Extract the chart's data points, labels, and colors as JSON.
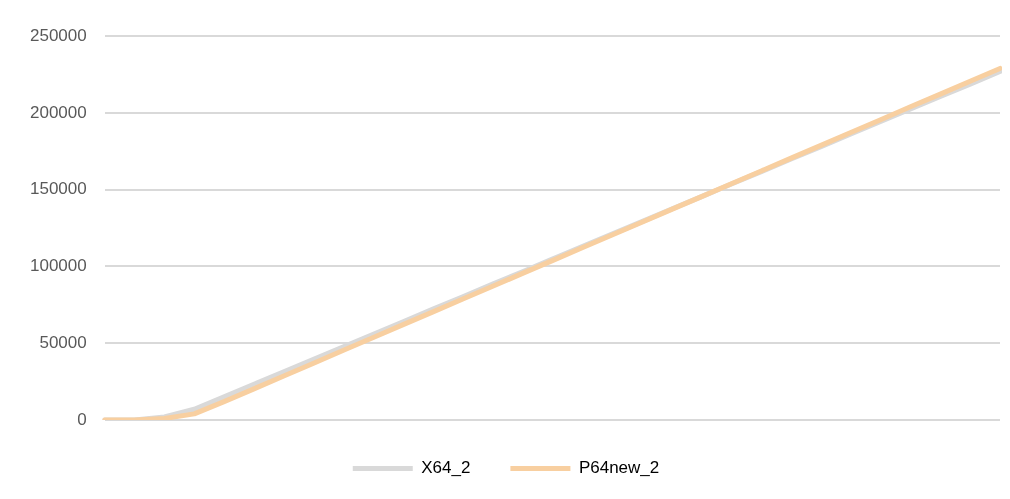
{
  "chart_data": {
    "type": "line",
    "categories": [
      null,
      null,
      null,
      null,
      null,
      null,
      null,
      null,
      null,
      null,
      null,
      null,
      null,
      null,
      null,
      null,
      null,
      null,
      null,
      null,
      null,
      null,
      null,
      null,
      null,
      null,
      null,
      null,
      null,
      null,
      null
    ],
    "series": [
      {
        "name": "X64_2",
        "color": "#d9d9d9",
        "values": [
          0,
          0,
          2000,
          7000,
          15100,
          23300,
          31400,
          39600,
          47700,
          55900,
          64000,
          72200,
          80300,
          88500,
          96600,
          104800,
          112900,
          121100,
          129200,
          137400,
          145500,
          153700,
          161800,
          170000,
          178100,
          186300,
          194400,
          202600,
          210700,
          218800,
          227000
        ]
      },
      {
        "name": "P64new_2",
        "color": "#f8cfa0",
        "values": [
          0,
          0,
          1000,
          4000,
          12000,
          20300,
          28700,
          37000,
          45400,
          53700,
          62100,
          70400,
          78800,
          87100,
          95500,
          103800,
          112200,
          120500,
          128800,
          137200,
          145500,
          153900,
          162200,
          170600,
          178900,
          187300,
          195600,
          204000,
          212300,
          220700,
          229000
        ]
      }
    ],
    "ylim": [
      0,
      250000
    ],
    "yticks": [
      0,
      50000,
      100000,
      150000,
      200000,
      250000
    ],
    "grid": "y",
    "legend": "bottom",
    "tick_labels": "y",
    "marker": "none",
    "line_style": "solid"
  }
}
